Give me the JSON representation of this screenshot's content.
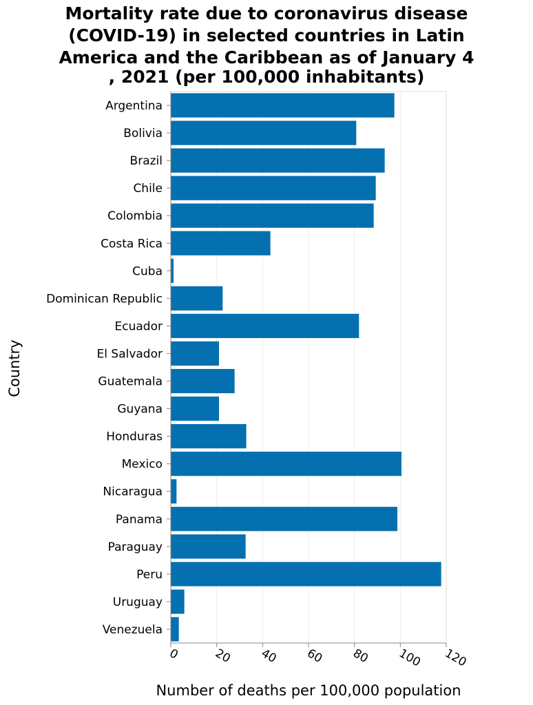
{
  "chart_data": {
    "type": "bar",
    "orientation": "horizontal",
    "title_lines": [
      "Mortality rate due to coronavirus disease",
      "(COVID-19) in selected countries in Latin",
      "America and the Caribbean as of January 4",
      ", 2021 (per 100,000 inhabitants)"
    ],
    "xlabel": "Number of deaths per 100,000 population",
    "ylabel": "Country",
    "xlim": [
      0,
      120
    ],
    "x_ticks": [
      0,
      20,
      40,
      60,
      80,
      100,
      120
    ],
    "grid": "vertical",
    "bar_color": "#0570b0",
    "categories": [
      "Argentina",
      "Bolivia",
      "Brazil",
      "Chile",
      "Colombia",
      "Costa Rica",
      "Cuba",
      "Dominican Republic",
      "Ecuador",
      "El Salvador",
      "Guatemala",
      "Guyana",
      "Honduras",
      "Mexico",
      "Nicaragua",
      "Panama",
      "Paraguay",
      "Peru",
      "Uruguay",
      "Venezuela"
    ],
    "values": [
      97.4,
      80.8,
      93.2,
      89.3,
      88.4,
      43.4,
      1.2,
      22.6,
      82.0,
      21.0,
      27.8,
      21.0,
      32.9,
      100.5,
      2.5,
      98.7,
      32.6,
      117.8,
      5.9,
      3.5
    ]
  }
}
